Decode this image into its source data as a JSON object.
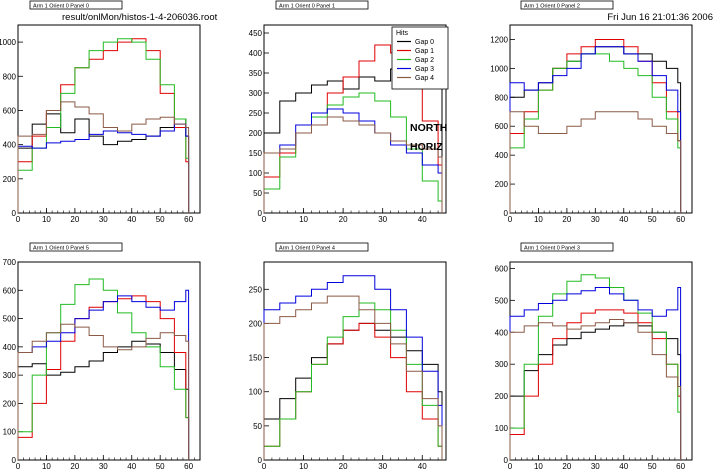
{
  "header": {
    "file_label": "result/onlMon/histos-1-4-206036.root",
    "timestamp": "Fri Jun 16 21:01:36 2006"
  },
  "annotations": {
    "side": "NORTH",
    "orientation": "HORIZ"
  },
  "legend": {
    "title": "Hits",
    "entries": [
      "Gap 0",
      "Gap 1",
      "Gap 2",
      "Gap 3",
      "Gap 4"
    ]
  },
  "colors": {
    "Gap 0": "#000000",
    "Gap 1": "#e00000",
    "Gap 2": "#22bb22",
    "Gap 3": "#0000dd",
    "Gap 4": "#8b5a45"
  },
  "chart_data": [
    {
      "type": "line",
      "title": "Arm 1 Orient 0 Panel 0",
      "xlim": [
        0,
        64
      ],
      "ylim": [
        0,
        1100
      ],
      "xticks": [
        0,
        10,
        20,
        30,
        40,
        50,
        60
      ],
      "yticks": [
        0,
        200,
        400,
        600,
        800,
        1000
      ],
      "series": [
        {
          "name": "Gap 0",
          "x": [
            0,
            5,
            10,
            15,
            20,
            25,
            30,
            35,
            40,
            45,
            50,
            55,
            59
          ],
          "y": [
            380,
            520,
            580,
            470,
            550,
            450,
            400,
            420,
            430,
            450,
            500,
            550,
            450
          ]
        },
        {
          "name": "Gap 1",
          "x": [
            0,
            5,
            10,
            15,
            20,
            25,
            30,
            35,
            40,
            45,
            50,
            55,
            59
          ],
          "y": [
            300,
            450,
            600,
            750,
            850,
            900,
            950,
            1000,
            1020,
            950,
            700,
            500,
            300
          ]
        },
        {
          "name": "Gap 2",
          "x": [
            0,
            5,
            10,
            15,
            20,
            25,
            30,
            35,
            40,
            45,
            50,
            55,
            59
          ],
          "y": [
            250,
            380,
            500,
            700,
            850,
            950,
            1000,
            1020,
            1000,
            900,
            750,
            550,
            320
          ]
        },
        {
          "name": "Gap 3",
          "x": [
            0,
            5,
            10,
            15,
            20,
            25,
            30,
            35,
            40,
            45,
            50,
            55,
            59
          ],
          "y": [
            390,
            380,
            410,
            420,
            430,
            460,
            480,
            470,
            460,
            450,
            480,
            520,
            450
          ]
        },
        {
          "name": "Gap 4",
          "x": [
            0,
            5,
            10,
            15,
            20,
            25,
            30,
            35,
            40,
            45,
            50,
            55,
            59
          ],
          "y": [
            450,
            460,
            600,
            650,
            620,
            580,
            500,
            480,
            520,
            550,
            560,
            520,
            500
          ]
        }
      ]
    },
    {
      "type": "line",
      "title": "Arm 1 Orient 0 Panel 1",
      "xlim": [
        0,
        46
      ],
      "ylim": [
        0,
        470
      ],
      "xticks": [
        0,
        10,
        20,
        30,
        40
      ],
      "yticks": [
        0,
        50,
        100,
        150,
        200,
        250,
        300,
        350,
        400,
        450
      ],
      "series": [
        {
          "name": "Gap 0",
          "x": [
            0,
            4,
            8,
            12,
            16,
            20,
            24,
            28,
            32,
            36,
            40,
            44
          ],
          "y": [
            200,
            280,
            300,
            320,
            330,
            310,
            340,
            330,
            360,
            350,
            380,
            320
          ]
        },
        {
          "name": "Gap 1",
          "x": [
            0,
            4,
            8,
            12,
            16,
            20,
            24,
            28,
            32,
            36,
            40,
            44
          ],
          "y": [
            90,
            150,
            200,
            250,
            300,
            340,
            380,
            420,
            400,
            330,
            230,
            120
          ]
        },
        {
          "name": "Gap 2",
          "x": [
            0,
            4,
            8,
            12,
            16,
            20,
            24,
            28,
            32,
            36,
            40,
            44
          ],
          "y": [
            60,
            140,
            200,
            240,
            270,
            290,
            300,
            280,
            240,
            160,
            80,
            30
          ]
        },
        {
          "name": "Gap 3",
          "x": [
            0,
            4,
            8,
            12,
            16,
            20,
            24,
            28,
            32,
            36,
            40,
            44
          ],
          "y": [
            150,
            170,
            220,
            250,
            260,
            250,
            230,
            200,
            170,
            150,
            120,
            100
          ]
        },
        {
          "name": "Gap 4",
          "x": [
            0,
            4,
            8,
            12,
            16,
            20,
            24,
            28,
            32,
            36,
            40,
            44
          ],
          "y": [
            150,
            160,
            200,
            220,
            240,
            230,
            220,
            200,
            180,
            170,
            160,
            140
          ]
        }
      ]
    },
    {
      "type": "line",
      "title": "Arm 1 Orient 0 Panel 2",
      "xlim": [
        0,
        64
      ],
      "ylim": [
        0,
        1300
      ],
      "xticks": [
        0,
        10,
        20,
        30,
        40,
        50,
        60
      ],
      "yticks": [
        0,
        200,
        400,
        600,
        800,
        1000,
        1200
      ],
      "series": [
        {
          "name": "Gap 0",
          "x": [
            0,
            5,
            10,
            15,
            20,
            25,
            30,
            35,
            40,
            45,
            50,
            55,
            59
          ],
          "y": [
            800,
            850,
            900,
            1000,
            1050,
            1100,
            1150,
            1150,
            1100,
            1100,
            1050,
            1000,
            900
          ]
        },
        {
          "name": "Gap 1",
          "x": [
            0,
            5,
            10,
            15,
            20,
            25,
            30,
            35,
            40,
            45,
            50,
            55,
            59
          ],
          "y": [
            550,
            700,
            850,
            1000,
            1100,
            1150,
            1200,
            1200,
            1150,
            1050,
            900,
            700,
            500
          ]
        },
        {
          "name": "Gap 2",
          "x": [
            0,
            5,
            10,
            15,
            20,
            25,
            30,
            35,
            40,
            45,
            50,
            55,
            59
          ],
          "y": [
            450,
            650,
            850,
            1000,
            1050,
            1100,
            1100,
            1050,
            1000,
            950,
            800,
            650,
            450
          ]
        },
        {
          "name": "Gap 3",
          "x": [
            0,
            5,
            10,
            15,
            20,
            25,
            30,
            35,
            40,
            45,
            50,
            55,
            59
          ],
          "y": [
            900,
            850,
            900,
            950,
            1000,
            1100,
            1150,
            1150,
            1100,
            1050,
            950,
            850,
            700
          ]
        },
        {
          "name": "Gap 4",
          "x": [
            0,
            5,
            10,
            15,
            20,
            25,
            30,
            35,
            40,
            45,
            50,
            55,
            59
          ],
          "y": [
            700,
            600,
            550,
            550,
            600,
            650,
            700,
            700,
            700,
            650,
            600,
            550,
            500
          ]
        }
      ]
    },
    {
      "type": "line",
      "title": "Arm 1 Orient 0 Panel 5",
      "xlim": [
        0,
        64
      ],
      "ylim": [
        0,
        700
      ],
      "xticks": [
        0,
        10,
        20,
        30,
        40,
        50,
        60
      ],
      "yticks": [
        0,
        100,
        200,
        300,
        400,
        500,
        600,
        700
      ],
      "series": [
        {
          "name": "Gap 0",
          "x": [
            0,
            5,
            10,
            15,
            20,
            25,
            30,
            35,
            40,
            45,
            50,
            55,
            59
          ],
          "y": [
            330,
            340,
            300,
            310,
            330,
            350,
            380,
            400,
            420,
            410,
            380,
            320,
            250
          ]
        },
        {
          "name": "Gap 1",
          "x": [
            0,
            5,
            10,
            15,
            20,
            25,
            30,
            35,
            40,
            45,
            50,
            55,
            59
          ],
          "y": [
            80,
            200,
            320,
            420,
            500,
            540,
            560,
            570,
            580,
            560,
            500,
            380,
            150
          ]
        },
        {
          "name": "Gap 2",
          "x": [
            0,
            5,
            10,
            15,
            20,
            25,
            30,
            35,
            40,
            45,
            50,
            55,
            59
          ],
          "y": [
            100,
            300,
            450,
            550,
            620,
            640,
            600,
            520,
            450,
            400,
            330,
            250,
            150
          ]
        },
        {
          "name": "Gap 3",
          "x": [
            0,
            5,
            10,
            15,
            20,
            25,
            30,
            35,
            40,
            45,
            50,
            55,
            59
          ],
          "y": [
            380,
            400,
            420,
            450,
            500,
            530,
            560,
            580,
            560,
            540,
            530,
            560,
            600
          ]
        },
        {
          "name": "Gap 4",
          "x": [
            0,
            5,
            10,
            15,
            20,
            25,
            30,
            35,
            40,
            45,
            50,
            55,
            59
          ],
          "y": [
            380,
            420,
            450,
            480,
            470,
            440,
            400,
            390,
            400,
            430,
            450,
            440,
            420
          ]
        }
      ]
    },
    {
      "type": "line",
      "title": "Arm 1 Orient 0 Panel 4",
      "xlim": [
        0,
        46
      ],
      "ylim": [
        0,
        290
      ],
      "xticks": [
        0,
        10,
        20,
        30,
        40
      ],
      "yticks": [
        0,
        50,
        100,
        150,
        200,
        250
      ],
      "series": [
        {
          "name": "Gap 0",
          "x": [
            0,
            4,
            8,
            12,
            16,
            20,
            24,
            28,
            32,
            36,
            40,
            44
          ],
          "y": [
            60,
            90,
            120,
            150,
            170,
            190,
            200,
            190,
            180,
            160,
            140,
            100
          ]
        },
        {
          "name": "Gap 1",
          "x": [
            0,
            4,
            8,
            12,
            16,
            20,
            24,
            28,
            32,
            36,
            40,
            44
          ],
          "y": [
            20,
            60,
            100,
            140,
            170,
            190,
            200,
            180,
            150,
            100,
            60,
            20
          ]
        },
        {
          "name": "Gap 2",
          "x": [
            0,
            4,
            8,
            12,
            16,
            20,
            24,
            28,
            32,
            36,
            40,
            44
          ],
          "y": [
            20,
            60,
            100,
            140,
            180,
            210,
            230,
            220,
            190,
            140,
            80,
            20
          ]
        },
        {
          "name": "Gap 3",
          "x": [
            0,
            4,
            8,
            12,
            16,
            20,
            24,
            28,
            32,
            36,
            40,
            44
          ],
          "y": [
            220,
            230,
            240,
            250,
            260,
            270,
            270,
            250,
            220,
            180,
            130,
            80
          ]
        },
        {
          "name": "Gap 4",
          "x": [
            0,
            4,
            8,
            12,
            16,
            20,
            24,
            28,
            32,
            36,
            40,
            44
          ],
          "y": [
            200,
            210,
            220,
            230,
            240,
            240,
            220,
            200,
            170,
            130,
            90,
            50
          ]
        }
      ]
    },
    {
      "type": "line",
      "title": "Arm 1 Orient 0 Panel 3",
      "xlim": [
        0,
        64
      ],
      "ylim": [
        0,
        620
      ],
      "xticks": [
        0,
        10,
        20,
        30,
        40,
        50,
        60
      ],
      "yticks": [
        0,
        100,
        200,
        300,
        400,
        500,
        600
      ],
      "series": [
        {
          "name": "Gap 0",
          "x": [
            0,
            5,
            10,
            15,
            20,
            25,
            30,
            35,
            40,
            45,
            50,
            55,
            59
          ],
          "y": [
            200,
            280,
            330,
            360,
            380,
            400,
            410,
            420,
            430,
            420,
            400,
            380,
            330
          ]
        },
        {
          "name": "Gap 1",
          "x": [
            0,
            5,
            10,
            15,
            20,
            25,
            30,
            35,
            40,
            45,
            50,
            55,
            59
          ],
          "y": [
            80,
            200,
            300,
            380,
            430,
            460,
            470,
            470,
            460,
            430,
            380,
            300,
            200
          ]
        },
        {
          "name": "Gap 2",
          "x": [
            0,
            5,
            10,
            15,
            20,
            25,
            30,
            35,
            40,
            45,
            50,
            55,
            59
          ],
          "y": [
            100,
            300,
            450,
            520,
            560,
            580,
            570,
            540,
            500,
            460,
            400,
            300,
            150
          ]
        },
        {
          "name": "Gap 3",
          "x": [
            0,
            5,
            10,
            15,
            20,
            25,
            30,
            35,
            40,
            45,
            50,
            55,
            59
          ],
          "y": [
            450,
            470,
            490,
            500,
            520,
            530,
            540,
            520,
            500,
            470,
            450,
            470,
            540
          ]
        },
        {
          "name": "Gap 4",
          "x": [
            0,
            5,
            10,
            15,
            20,
            25,
            30,
            35,
            40,
            45,
            50,
            55,
            59
          ],
          "y": [
            400,
            420,
            430,
            420,
            410,
            420,
            430,
            440,
            430,
            400,
            330,
            260,
            230
          ]
        }
      ]
    }
  ]
}
